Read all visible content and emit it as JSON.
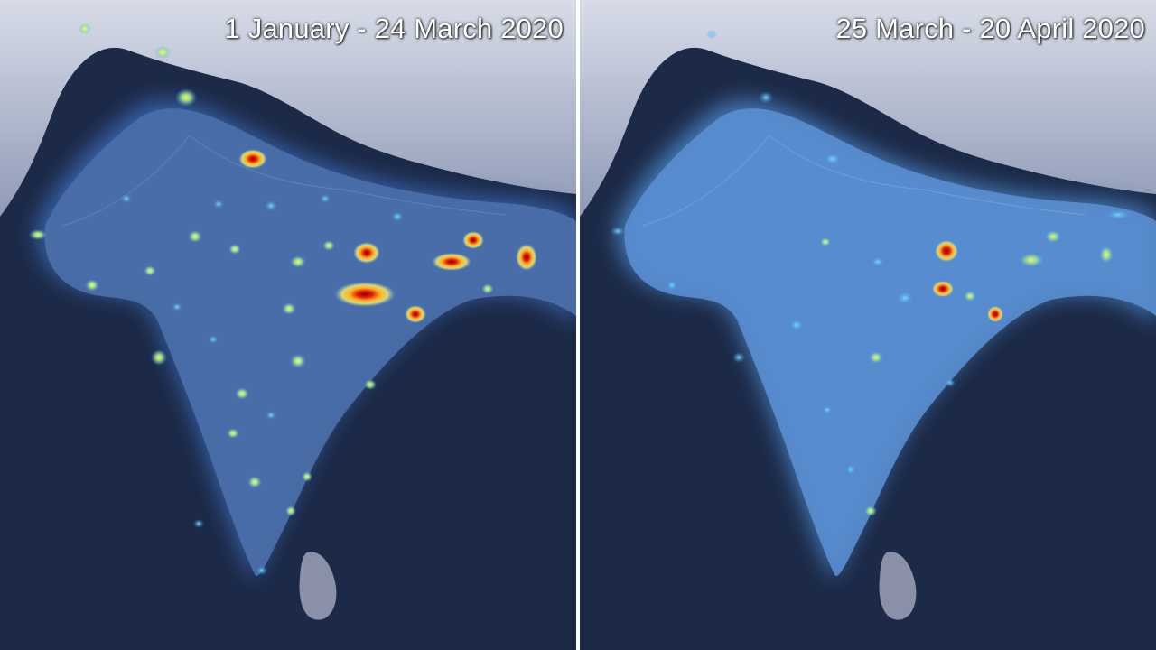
{
  "panels": [
    {
      "caption": "1 January - 24 March 2020",
      "pollution_level": "high"
    },
    {
      "caption": "25 March - 20 April 2020",
      "pollution_level": "reduced"
    }
  ],
  "colors": {
    "ocean": "#1c2947",
    "land_base": "#3d5f9a",
    "mountains": "#b9c0d4",
    "low": "#3fa0e0",
    "mid": "#9fe070",
    "high_yellow": "#ffe040",
    "high_orange": "#ff8020",
    "peak_red": "#c01010",
    "divider": "#ffffff"
  }
}
